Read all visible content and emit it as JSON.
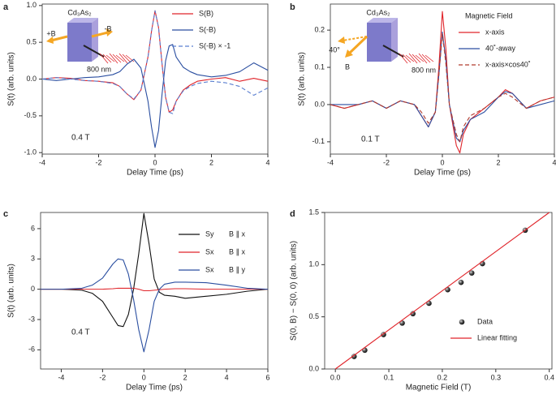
{
  "chart_data": [
    {
      "type": "line",
      "panel": "a",
      "annotation": "0.4 T",
      "legend": "upper right",
      "xlabel": "Delay Time (ps)",
      "ylabel": "S(t) (arb. units)",
      "xlim": [
        -4,
        4
      ],
      "xticks": [
        -4,
        -2,
        0,
        2,
        4
      ],
      "ylim": [
        -1.02,
        1.02
      ],
      "yticks": [
        {
          "value": -1,
          "label": "-1.0"
        },
        -0.5,
        {
          "value": 0,
          "label": "0.0"
        },
        0.5,
        {
          "value": 1,
          "label": "1.0"
        }
      ],
      "inset": {
        "labels": [
          "Cd₃As₂",
          "+B",
          "-B",
          "800 nm"
        ]
      },
      "x": [
        -4,
        -3.5,
        -3,
        -2.5,
        -2,
        -1.5,
        -1.25,
        -1,
        -0.75,
        -0.5,
        -0.25,
        -0.125,
        0,
        0.125,
        0.25,
        0.375,
        0.5,
        0.625,
        0.75,
        1,
        1.25,
        1.5,
        2,
        2.5,
        3,
        3.5,
        4
      ],
      "series": [
        {
          "name": "S(B)",
          "color": "#e0242a",
          "dashed": false,
          "values": [
            0,
            0.02,
            0.01,
            -0.02,
            -0.03,
            -0.05,
            -0.1,
            -0.2,
            -0.28,
            -0.15,
            0.3,
            0.65,
            0.93,
            0.7,
            0.2,
            -0.25,
            -0.45,
            -0.42,
            -0.3,
            -0.15,
            -0.08,
            -0.03,
            0,
            0.02,
            -0.03,
            0.01,
            -0.03
          ]
        },
        {
          "name": "S(-B)",
          "color": "#2a4ea0",
          "dashed": false,
          "values": [
            0,
            -0.02,
            0,
            0.02,
            0.03,
            0.06,
            0.1,
            0.2,
            0.27,
            0.15,
            -0.3,
            -0.65,
            -0.93,
            -0.7,
            -0.2,
            0.25,
            0.45,
            0.47,
            0.3,
            0.16,
            0.1,
            0.06,
            0.03,
            0.05,
            0.1,
            0.22,
            0.12
          ]
        },
        {
          "name": "S(-B) × -1",
          "color": "#5b7fd0",
          "dashed": true,
          "values": [
            0,
            0.02,
            0,
            -0.02,
            -0.03,
            -0.06,
            -0.1,
            -0.2,
            -0.27,
            -0.15,
            0.3,
            0.65,
            0.93,
            0.7,
            0.2,
            -0.25,
            -0.45,
            -0.47,
            -0.3,
            -0.16,
            -0.1,
            -0.06,
            -0.03,
            -0.05,
            -0.1,
            -0.22,
            -0.12
          ]
        }
      ]
    },
    {
      "type": "line",
      "panel": "b",
      "annotation": "0.1 T",
      "legend": "upper right",
      "legend_title": "Magnetic Field",
      "xlabel": "Delay Time (ps)",
      "ylabel": "S(t) (arb. units)",
      "xlim": [
        -4,
        4
      ],
      "xticks": [
        -4,
        -2,
        0,
        2,
        4
      ],
      "ylim": [
        -0.133,
        0.27
      ],
      "yticks": [
        -0.1,
        {
          "value": 0,
          "label": "0.0"
        },
        0.1,
        0.2
      ],
      "inset": {
        "labels": [
          "Cd₃As₂",
          "40°",
          "B",
          "800 nm"
        ]
      },
      "x": [
        -4,
        -3.5,
        -3,
        -2.5,
        -2,
        -1.5,
        -1,
        -0.75,
        -0.5,
        -0.25,
        -0.125,
        0,
        0.125,
        0.25,
        0.5,
        0.625,
        0.75,
        1,
        1.5,
        2,
        2.25,
        2.5,
        3,
        3.5,
        4
      ],
      "series": [
        {
          "name": "x-axis",
          "color": "#e0242a",
          "dashed": false,
          "values": [
            0,
            -0.01,
            0,
            0.01,
            -0.01,
            0.01,
            0,
            -0.03,
            -0.06,
            -0.02,
            0.1,
            0.25,
            0.15,
            0,
            -0.11,
            -0.13,
            -0.08,
            -0.04,
            -0.01,
            0.02,
            0.04,
            0.03,
            -0.01,
            0.01,
            0.02
          ]
        },
        {
          "name": "40˚-away",
          "color": "#2a4ea0",
          "dashed": false,
          "values": [
            0,
            0,
            0,
            0.01,
            -0.01,
            0.01,
            0,
            -0.03,
            -0.06,
            -0.02,
            0.08,
            0.195,
            0.12,
            0,
            -0.09,
            -0.1,
            -0.07,
            -0.04,
            -0.02,
            0.02,
            0.035,
            0.03,
            -0.01,
            0,
            0.01
          ]
        },
        {
          "name": "x-axis×cos40˚",
          "color": "#b03a2e",
          "dashed": true,
          "values": [
            0,
            -0.01,
            0,
            0.01,
            -0.01,
            0.01,
            0,
            -0.02,
            -0.05,
            -0.02,
            0.08,
            0.19,
            0.11,
            0,
            -0.08,
            -0.1,
            -0.06,
            -0.03,
            -0.01,
            0.02,
            0.03,
            0.02,
            -0.01,
            0.01,
            0.02
          ]
        }
      ]
    },
    {
      "type": "line",
      "panel": "c",
      "annotation": "0.4 T",
      "legend": "upper right",
      "xlabel": "Delay Time (ps)",
      "ylabel": "S(t) (arb. units)",
      "xlim": [
        -5,
        6
      ],
      "xticks": [
        -4,
        -2,
        0,
        2,
        4,
        6
      ],
      "ylim": [
        -7.9,
        7.6
      ],
      "yticks": [
        -6,
        -3,
        0,
        3,
        6
      ],
      "x": [
        -5,
        -4,
        -3,
        -2.5,
        -2,
        -1.5,
        -1.25,
        -1,
        -0.75,
        -0.5,
        -0.25,
        0,
        0.25,
        0.5,
        0.75,
        1,
        1.5,
        2,
        3,
        4,
        5,
        6
      ],
      "series": [
        {
          "name": "Sy",
          "label": "B ∥ x",
          "color": "#111111",
          "dashed": false,
          "values": [
            0,
            0,
            -0.1,
            -0.4,
            -1.2,
            -2.8,
            -3.6,
            -3.7,
            -2.5,
            0,
            3.5,
            7.5,
            4.5,
            1,
            -0.3,
            -0.6,
            -0.7,
            -0.9,
            -0.7,
            -0.5,
            -0.2,
            0
          ]
        },
        {
          "name": "Sx",
          "label": "B ∥ x",
          "color": "#e0242a",
          "dashed": false,
          "values": [
            0,
            0,
            0,
            0,
            0,
            0.05,
            0.1,
            0.1,
            0.1,
            0.1,
            0,
            -0.15,
            -0.15,
            -0.1,
            -0.05,
            0,
            0.05,
            0.05,
            0,
            0,
            0,
            0
          ]
        },
        {
          "name": "Sx",
          "label": "B ∥ y",
          "color": "#2a4ea0",
          "dashed": false,
          "values": [
            0,
            0,
            0.1,
            0.4,
            1.1,
            2.5,
            3,
            2.9,
            1.5,
            -1,
            -4,
            -6.2,
            -4,
            -1.2,
            0,
            0.5,
            0.7,
            0.7,
            0.65,
            0.4,
            0.1,
            0
          ]
        }
      ]
    },
    {
      "type": "scatter",
      "panel": "d",
      "legend": "lower right",
      "xlabel": "Magnetic Field (T)",
      "ylabel": "S(0, B) − S(0, 0) (arb. units)",
      "xlim": [
        -0.02,
        0.405
      ],
      "xticks": [
        {
          "value": 0,
          "label": "0.0"
        },
        0.1,
        0.2,
        0.3,
        0.4
      ],
      "ylim": [
        0,
        1.5
      ],
      "yticks": [
        {
          "value": 0,
          "label": "0.0"
        },
        0.5,
        {
          "value": 1,
          "label": "1.0"
        },
        1.5
      ],
      "series": [
        {
          "name": "Data",
          "type": "scatter",
          "color": "#333333",
          "x": [
            0.035,
            0.055,
            0.09,
            0.125,
            0.145,
            0.175,
            0.21,
            0.235,
            0.255,
            0.275,
            0.355
          ],
          "values": [
            0.12,
            0.18,
            0.33,
            0.44,
            0.53,
            0.63,
            0.76,
            0.83,
            0.92,
            1.01,
            1.33
          ]
        },
        {
          "name": "Linear fitting",
          "type": "line",
          "color": "#e0242a",
          "x": [
            0,
            0.4
          ],
          "values": [
            0,
            1.5
          ]
        }
      ]
    }
  ]
}
